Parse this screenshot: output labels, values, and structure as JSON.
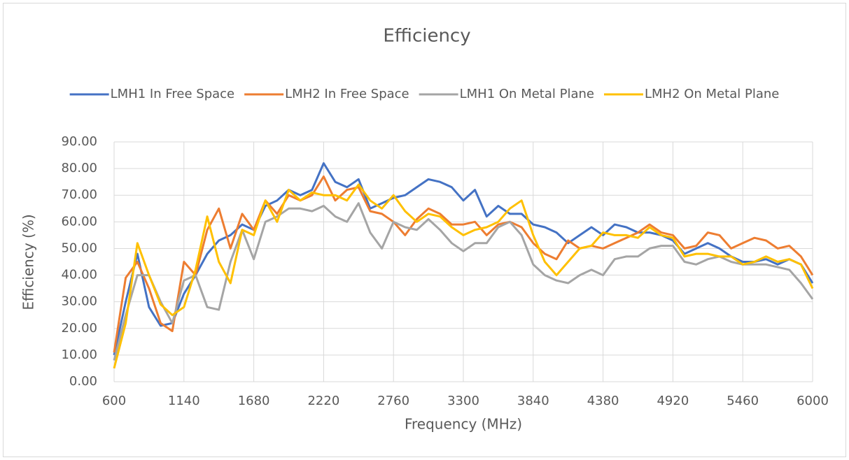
{
  "chart_data": {
    "type": "line",
    "title": "Efficiency",
    "x_label": "Frequency (MHz)",
    "y_label": "Efficiency (%)",
    "x": [
      600,
      690,
      780,
      870,
      960,
      1050,
      1140,
      1230,
      1320,
      1410,
      1500,
      1590,
      1680,
      1770,
      1860,
      1950,
      2040,
      2130,
      2220,
      2310,
      2400,
      2490,
      2580,
      2670,
      2760,
      2850,
      2940,
      3030,
      3120,
      3210,
      3300,
      3390,
      3480,
      3570,
      3660,
      3750,
      3840,
      3930,
      4020,
      4110,
      4200,
      4290,
      4380,
      4470,
      4560,
      4650,
      4740,
      4830,
      4920,
      5010,
      5100,
      5190,
      5280,
      5370,
      5460,
      5550,
      5640,
      5730,
      5820,
      5910,
      6000
    ],
    "series": [
      {
        "name": "LMH1 In Free Space",
        "color": "#4472c4",
        "values": [
          10,
          30,
          48,
          28,
          21,
          22,
          33,
          40,
          48,
          53,
          55,
          59,
          57,
          66,
          68,
          72,
          70,
          72,
          82,
          75,
          73,
          76,
          65,
          67,
          69,
          70,
          73,
          76,
          75,
          73,
          68,
          72,
          62,
          66,
          63,
          63,
          59,
          58,
          56,
          52,
          55,
          58,
          55,
          59,
          58,
          56,
          56,
          55,
          53,
          48,
          50,
          52,
          50,
          47,
          45,
          45,
          46,
          44,
          46,
          44,
          37
        ]
      },
      {
        "name": "LMH2 In Free Space",
        "color": "#ed7d31",
        "values": [
          11,
          39,
          45,
          35,
          22,
          19,
          45,
          40,
          57,
          65,
          50,
          63,
          57,
          68,
          63,
          70,
          68,
          70,
          77,
          68,
          72,
          73,
          64,
          63,
          60,
          55,
          61,
          65,
          63,
          59,
          59,
          60,
          55,
          59,
          60,
          58,
          52,
          48,
          46,
          53,
          50,
          51,
          50,
          52,
          54,
          56,
          59,
          56,
          55,
          50,
          51,
          56,
          55,
          50,
          52,
          54,
          53,
          50,
          51,
          47,
          40
        ]
      },
      {
        "name": "LMH1 On Metal Plane",
        "color": "#a5a5a5",
        "values": [
          8,
          25,
          40,
          40,
          30,
          22,
          38,
          40,
          28,
          27,
          45,
          57,
          46,
          60,
          62,
          65,
          65,
          64,
          66,
          62,
          60,
          67,
          56,
          50,
          60,
          58,
          57,
          61,
          57,
          52,
          49,
          52,
          52,
          58,
          60,
          55,
          44,
          40,
          38,
          37,
          40,
          42,
          40,
          46,
          47,
          47,
          50,
          51,
          51,
          45,
          44,
          46,
          47,
          45,
          44,
          44,
          44,
          43,
          42,
          37,
          31
        ]
      },
      {
        "name": "LMH2 On Metal Plane",
        "color": "#ffc000",
        "values": [
          5,
          22,
          52,
          40,
          29,
          25,
          28,
          42,
          62,
          45,
          37,
          57,
          55,
          68,
          60,
          72,
          68,
          71,
          70,
          70,
          68,
          74,
          68,
          65,
          70,
          64,
          60,
          63,
          62,
          58,
          55,
          57,
          58,
          60,
          65,
          68,
          55,
          45,
          40,
          45,
          50,
          51,
          56,
          55,
          55,
          54,
          58,
          55,
          54,
          47,
          48,
          48,
          47,
          47,
          44,
          45,
          47,
          45,
          46,
          44,
          35
        ]
      }
    ],
    "xlim": [
      600,
      6000
    ],
    "xticks": [
      600,
      1140,
      1680,
      2220,
      2760,
      3300,
      3840,
      4380,
      4920,
      5460,
      6000
    ],
    "ylim": [
      0,
      90
    ],
    "yticks": [
      {
        "value": 0,
        "label": "0.00"
      },
      {
        "value": 10,
        "label": "10.00"
      },
      {
        "value": 20,
        "label": "20.00"
      },
      {
        "value": 30,
        "label": "30.00"
      },
      {
        "value": 40,
        "label": "40.00"
      },
      {
        "value": 50,
        "label": "50.00"
      },
      {
        "value": 60,
        "label": "60.00"
      },
      {
        "value": 70,
        "label": "70.00"
      },
      {
        "value": 80,
        "label": "80.00"
      },
      {
        "value": 90,
        "label": "90.00"
      }
    ],
    "grid": true,
    "legend": "top"
  }
}
